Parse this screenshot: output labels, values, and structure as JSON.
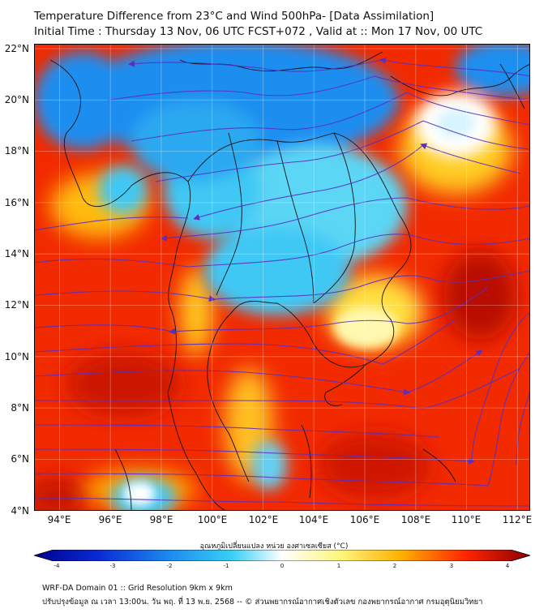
{
  "title": {
    "line1": "Temperature Difference from 23°C and Wind 500hPa- [Data Assimilation]",
    "line2": "Initial Time : Thursday 13 Nov, 06 UTC FCST+072 , Valid at ::  Mon 17 Nov, 00 UTC"
  },
  "map": {
    "lat_labels": [
      "22°N",
      "20°N",
      "18°N",
      "16°N",
      "14°N",
      "12°N",
      "10°N",
      "8°N",
      "6°N",
      "4°N"
    ],
    "lon_labels": [
      "94°E",
      "96°E",
      "98°E",
      "100°E",
      "102°E",
      "104°E",
      "106°E",
      "108°E",
      "110°E",
      "112°E"
    ],
    "lat_range": [
      4,
      22.2
    ],
    "lon_range": [
      93,
      112.5
    ],
    "field": "temperature difference from 23°C",
    "vectors": "500hPa wind streamlines"
  },
  "colorbar": {
    "title": "อุณหภูมิเปลี่ยนแปลง หน่วย องศาเซลเซียส (°C)",
    "ticks": [
      "-4",
      "-3",
      "-2",
      "-1",
      "0",
      "1",
      "2",
      "3",
      "4"
    ],
    "colors": {
      "neg4": "#00008b",
      "neg3": "#0a2ad6",
      "neg2": "#1e8ff0",
      "neg1": "#38d0f5",
      "zero": "#ffffff",
      "pos1": "#fff47a",
      "pos2": "#ffb000",
      "pos3": "#ff2400",
      "pos4": "#8b0000"
    }
  },
  "footer": {
    "line1": "WRF-DA Domain 01 :: Grid Resolution 9km x 9km",
    "line2": "ปรับปรุงข้อมูล ณ เวลา 13:00น. วัน พฤ. ที่ 13 พ.ย. 2568 -- © ส่วนพยากรณ์อากาศเชิงตัวเลข กองพยากรณ์อากาศ กรมอุตุนิยมวิทยา"
  }
}
